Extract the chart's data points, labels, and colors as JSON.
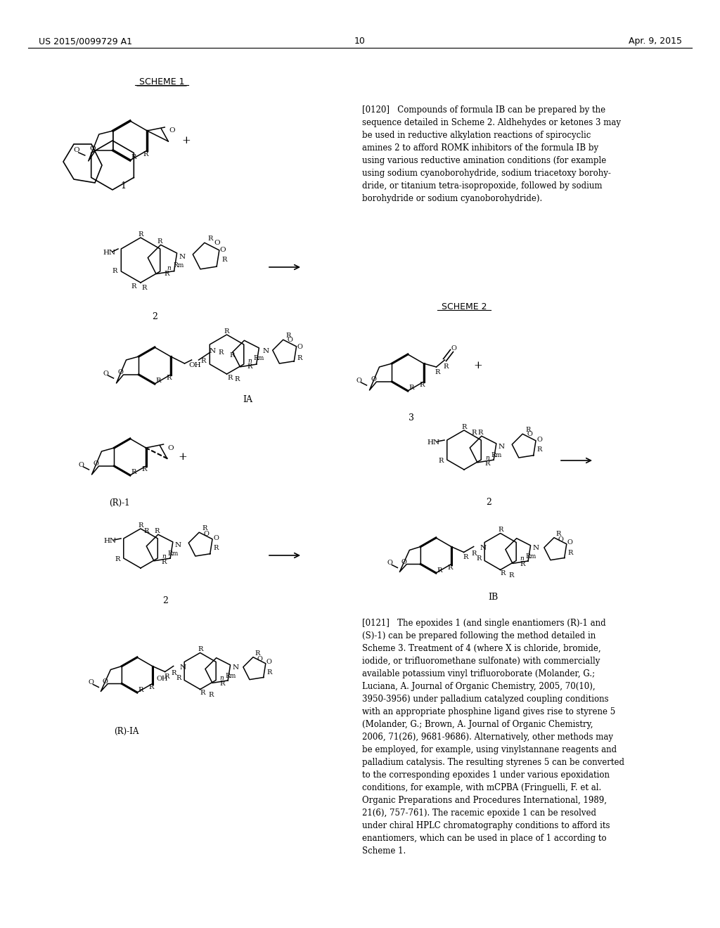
{
  "patent_number": "US 2015/0099729 A1",
  "date": "Apr. 9, 2015",
  "page_number": "10",
  "background_color": "#ffffff",
  "text_color": "#000000",
  "header_left": "US 2015/0099729 A1",
  "header_right": "Apr. 9, 2015",
  "page_num": "10",
  "scheme1_label": "SCHEME 1",
  "scheme2_label": "SCHEME 2",
  "label1": "1",
  "label2": "2",
  "labelIA": "IA",
  "labelR1": "(R)-1",
  "labelR2": "2",
  "labelRIA": "(R)-IA",
  "label3": "3",
  "label2b": "2",
  "labelIB": "IB",
  "para120_bold": "[0120]",
  "para120_text": "   Compounds of formula IB can be prepared by the sequence detailed in Scheme 2. Aldhehydes or ketones 3 may be used in reductive alkylation reactions of spirocyclic amines 2 to afford ROMK inhibitors of the formula IB by using various reductive amination conditions (for example using sodium cyanoborohydride, sodium triacetoxy borohydride, or titanium tetra-isopropoxide, followed by sodium borohydride or sodium cyanoborohydride).",
  "para121_bold": "[0121]",
  "para121_text": "   The epoxides 1 (and single enantiomers (R)-1 and (S)-1) can be prepared following the method detailed in Scheme 3. Treatment of 4 (where X is chloride, bromide, iodide, or trifluoromethane sulfonate) with commercially available potassium vinyl trifluoroborate (Molander, G.; Luciana, A. Journal of Organic Chemistry, 2005, 70(10), 3950-3956) under palladium catalyzed coupling conditions with an appropriate phosphine ligand gives rise to styrene 5 (Molander, G.; Brown, A. Journal of Organic Chemistry, 2006, 71(26), 9681-9686). Alternatively, other methods may be employed, for example, using vinylstannane reagents and palladium catalysis. The resulting styrenes 5 can be converted to the corresponding epoxides 1 under various epoxidation conditions, for example, with mCPBA (Fringuelli, F. et al. Organic Preparations and Procedures International, 1989, 21(6), 757-761). The racemic epoxide 1 can be resolved under chiral HPLC chromatography conditions to afford its enantiomers, which can be used in place of 1 according to Scheme 1.",
  "font_size_header": 9,
  "font_size_body": 9,
  "font_size_scheme": 9,
  "line_width": 0.8
}
